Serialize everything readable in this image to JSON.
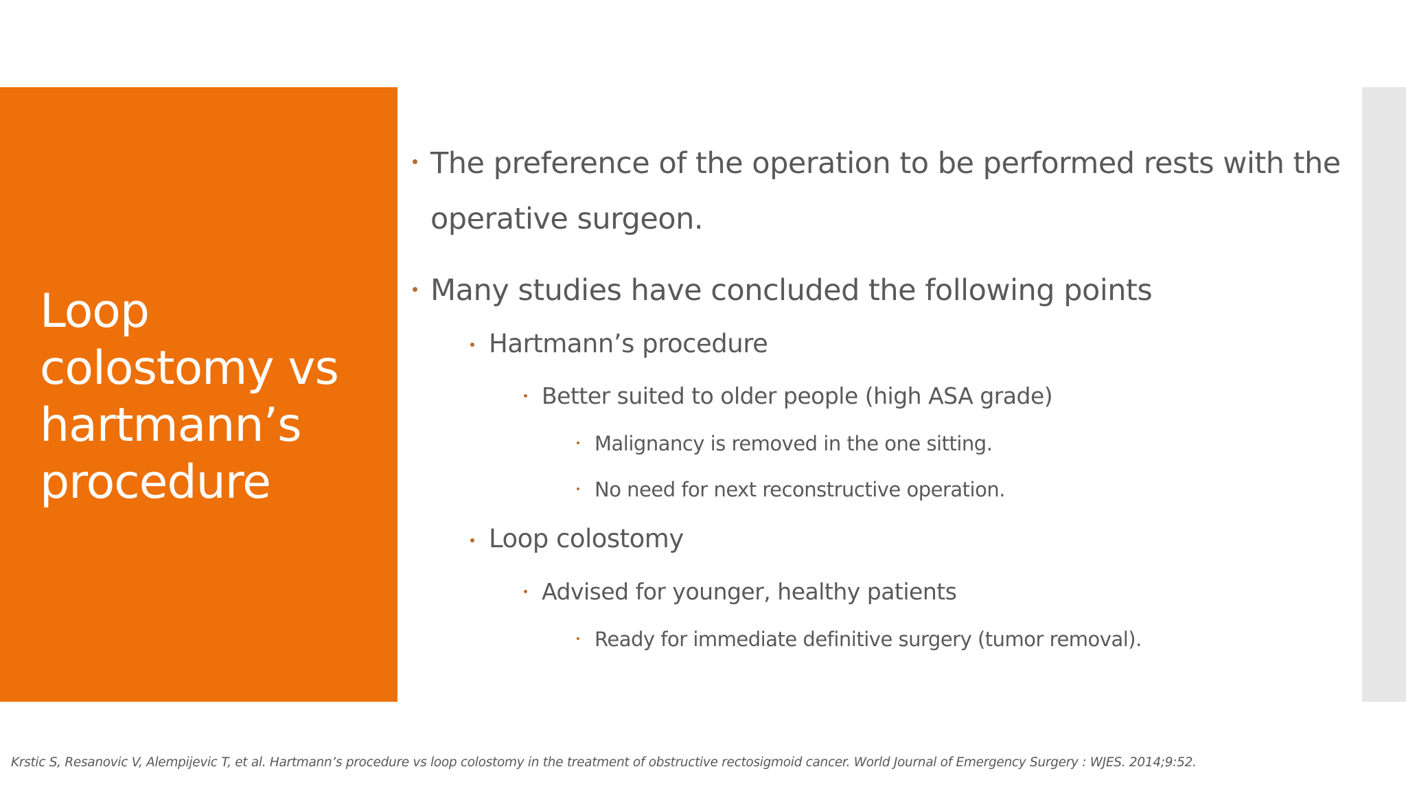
{
  "slide": {
    "title": "Loop\ncolostomy vs\nhartmann’s\nprocedure",
    "bullets": [
      {
        "text": "The preference of the operation to be performed rests with the operative surgeon."
      },
      {
        "text": "Many studies have concluded the following points"
      },
      {
        "text": "Hartmann’s procedure"
      },
      {
        "text": "Better suited to older people (high ASA grade)"
      },
      {
        "text": "Malignancy is removed in the one sitting."
      },
      {
        "text": "No need for next reconstructive operation."
      },
      {
        "text": "Loop colostomy"
      },
      {
        "text": "Advised for younger, healthy patients"
      },
      {
        "text": "Ready for immediate definitive surgery (tumor removal)."
      }
    ],
    "citation": "Krstic S, Resanovic V, Alempijevic T, et al. Hartmann’s procedure vs loop colostomy in the treatment of obstructive rectosigmoid cancer. World Journal of Emergency Surgery : WJES. 2014;9:52."
  },
  "colors": {
    "accent": "#ed700a",
    "text": "#595959",
    "bullet": "#b86a2e",
    "side_bar": "#e6e6e6"
  }
}
